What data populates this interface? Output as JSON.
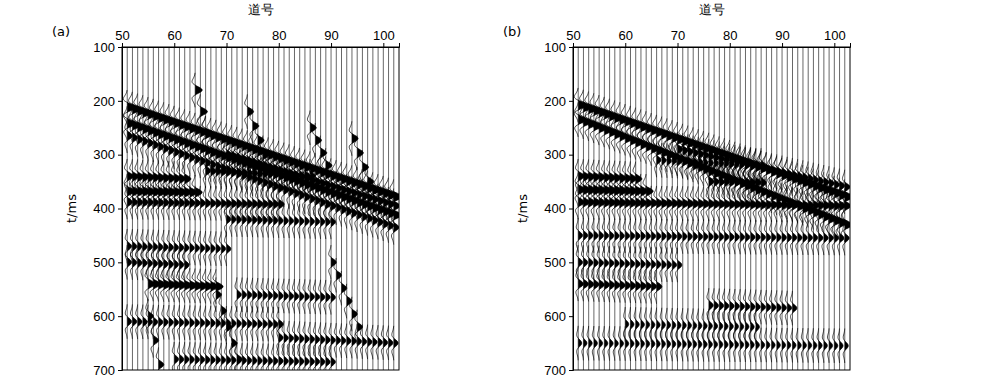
{
  "chart_data": [
    {
      "type": "wiggle",
      "label": "(a)",
      "x_label": "道号",
      "y_label": "t/ms",
      "xlim": [
        50,
        103
      ],
      "ylim": [
        100,
        700
      ],
      "xticks": [
        50,
        60,
        70,
        80,
        90,
        100
      ],
      "yticks": [
        100,
        200,
        300,
        400,
        500,
        600,
        700
      ],
      "traces": [
        51,
        52,
        53,
        54,
        55,
        56,
        57,
        58,
        59,
        60,
        61,
        62,
        63,
        64,
        65,
        66,
        67,
        68,
        69,
        70,
        71,
        72,
        73,
        74,
        75,
        76,
        77,
        78,
        79,
        80,
        81,
        82,
        83,
        84,
        85,
        86,
        87,
        88,
        89,
        90,
        91,
        92,
        93,
        94,
        95,
        96,
        97,
        98,
        99,
        100,
        101,
        102
      ],
      "events": [
        {
          "x": [
            51,
            102
          ],
          "t": [
            212,
            378
          ],
          "amplitude": 1.0
        },
        {
          "x": [
            51,
            102
          ],
          "t": [
            242,
            412
          ],
          "amplitude": 0.9
        },
        {
          "x": [
            51,
            102
          ],
          "t": [
            265,
            435
          ],
          "amplitude": 0.6
        },
        {
          "x": [
            70,
            102
          ],
          "t": [
            300,
            395
          ],
          "amplitude": 0.7
        },
        {
          "x": [
            51,
            62
          ],
          "t": [
            340,
            345
          ],
          "amplitude": 0.7
        },
        {
          "x": [
            51,
            64
          ],
          "t": [
            368,
            370
          ],
          "amplitude": 0.8
        },
        {
          "x": [
            51,
            80
          ],
          "t": [
            388,
            392
          ],
          "amplitude": 0.6
        },
        {
          "x": [
            66,
            86
          ],
          "t": [
            330,
            340
          ],
          "amplitude": 0.6
        },
        {
          "x": [
            70,
            90
          ],
          "t": [
            420,
            425
          ],
          "amplitude": 0.5
        },
        {
          "x": [
            51,
            70
          ],
          "t": [
            470,
            475
          ],
          "amplitude": 0.5
        },
        {
          "x": [
            55,
            68
          ],
          "t": [
            540,
            545
          ],
          "amplitude": 0.8
        },
        {
          "x": [
            51,
            62
          ],
          "t": [
            500,
            505
          ],
          "amplitude": 0.5
        },
        {
          "x": [
            72,
            90
          ],
          "t": [
            560,
            565
          ],
          "amplitude": 0.5
        },
        {
          "x": [
            51,
            80
          ],
          "t": [
            610,
            615
          ],
          "amplitude": 0.5
        },
        {
          "x": [
            80,
            102
          ],
          "t": [
            640,
            650
          ],
          "amplitude": 0.5
        },
        {
          "x": [
            60,
            90
          ],
          "t": [
            680,
            685
          ],
          "amplitude": 0.5
        },
        {
          "x": [
            64,
            66
          ],
          "t": [
            180,
            260
          ],
          "amplitude": 0.8
        },
        {
          "x": [
            74,
            77
          ],
          "t": [
            220,
            300
          ],
          "amplitude": 0.7
        },
        {
          "x": [
            86,
            89
          ],
          "t": [
            250,
            320
          ],
          "amplitude": 0.7
        },
        {
          "x": [
            94,
            97
          ],
          "t": [
            270,
            350
          ],
          "amplitude": 0.7
        },
        {
          "x": [
            55,
            57
          ],
          "t": [
            600,
            690
          ],
          "amplitude": 0.6
        },
        {
          "x": [
            68,
            72
          ],
          "t": [
            560,
            680
          ],
          "amplitude": 0.6
        },
        {
          "x": [
            90,
            95
          ],
          "t": [
            500,
            620
          ],
          "amplitude": 0.6
        }
      ]
    },
    {
      "type": "wiggle",
      "label": "(b)",
      "x_label": "道号",
      "y_label": "t/ms",
      "xlim": [
        50,
        103
      ],
      "ylim": [
        100,
        700
      ],
      "xticks": [
        50,
        60,
        70,
        80,
        90,
        100
      ],
      "yticks": [
        100,
        200,
        300,
        400,
        500,
        600,
        700
      ],
      "traces": [
        51,
        52,
        53,
        54,
        55,
        56,
        57,
        58,
        59,
        60,
        61,
        62,
        63,
        64,
        65,
        66,
        67,
        68,
        69,
        70,
        71,
        72,
        73,
        74,
        75,
        76,
        77,
        78,
        79,
        80,
        81,
        82,
        83,
        84,
        85,
        86,
        87,
        88,
        89,
        90,
        91,
        92,
        93,
        94,
        95,
        96,
        97,
        98,
        99,
        100,
        101,
        102
      ],
      "events": [
        {
          "x": [
            51,
            102
          ],
          "t": [
            208,
            378
          ],
          "amplitude": 1.0
        },
        {
          "x": [
            51,
            102
          ],
          "t": [
            235,
            430
          ],
          "amplitude": 0.9
        },
        {
          "x": [
            70,
            102
          ],
          "t": [
            290,
            360
          ],
          "amplitude": 0.6
        },
        {
          "x": [
            51,
            62
          ],
          "t": [
            340,
            345
          ],
          "amplitude": 0.7
        },
        {
          "x": [
            51,
            64
          ],
          "t": [
            365,
            368
          ],
          "amplitude": 0.8
        },
        {
          "x": [
            51,
            102
          ],
          "t": [
            388,
            395
          ],
          "amplitude": 0.7
        },
        {
          "x": [
            66,
            86
          ],
          "t": [
            310,
            320
          ],
          "amplitude": 0.5
        },
        {
          "x": [
            76,
            86
          ],
          "t": [
            350,
            352
          ],
          "amplitude": 0.6
        },
        {
          "x": [
            51,
            102
          ],
          "t": [
            450,
            455
          ],
          "amplitude": 0.5
        },
        {
          "x": [
            51,
            70
          ],
          "t": [
            500,
            505
          ],
          "amplitude": 0.5
        },
        {
          "x": [
            51,
            66
          ],
          "t": [
            540,
            545
          ],
          "amplitude": 0.6
        },
        {
          "x": [
            76,
            92
          ],
          "t": [
            580,
            585
          ],
          "amplitude": 0.5
        },
        {
          "x": [
            51,
            102
          ],
          "t": [
            650,
            655
          ],
          "amplitude": 0.4
        },
        {
          "x": [
            60,
            85
          ],
          "t": [
            615,
            620
          ],
          "amplitude": 0.4
        }
      ]
    }
  ]
}
